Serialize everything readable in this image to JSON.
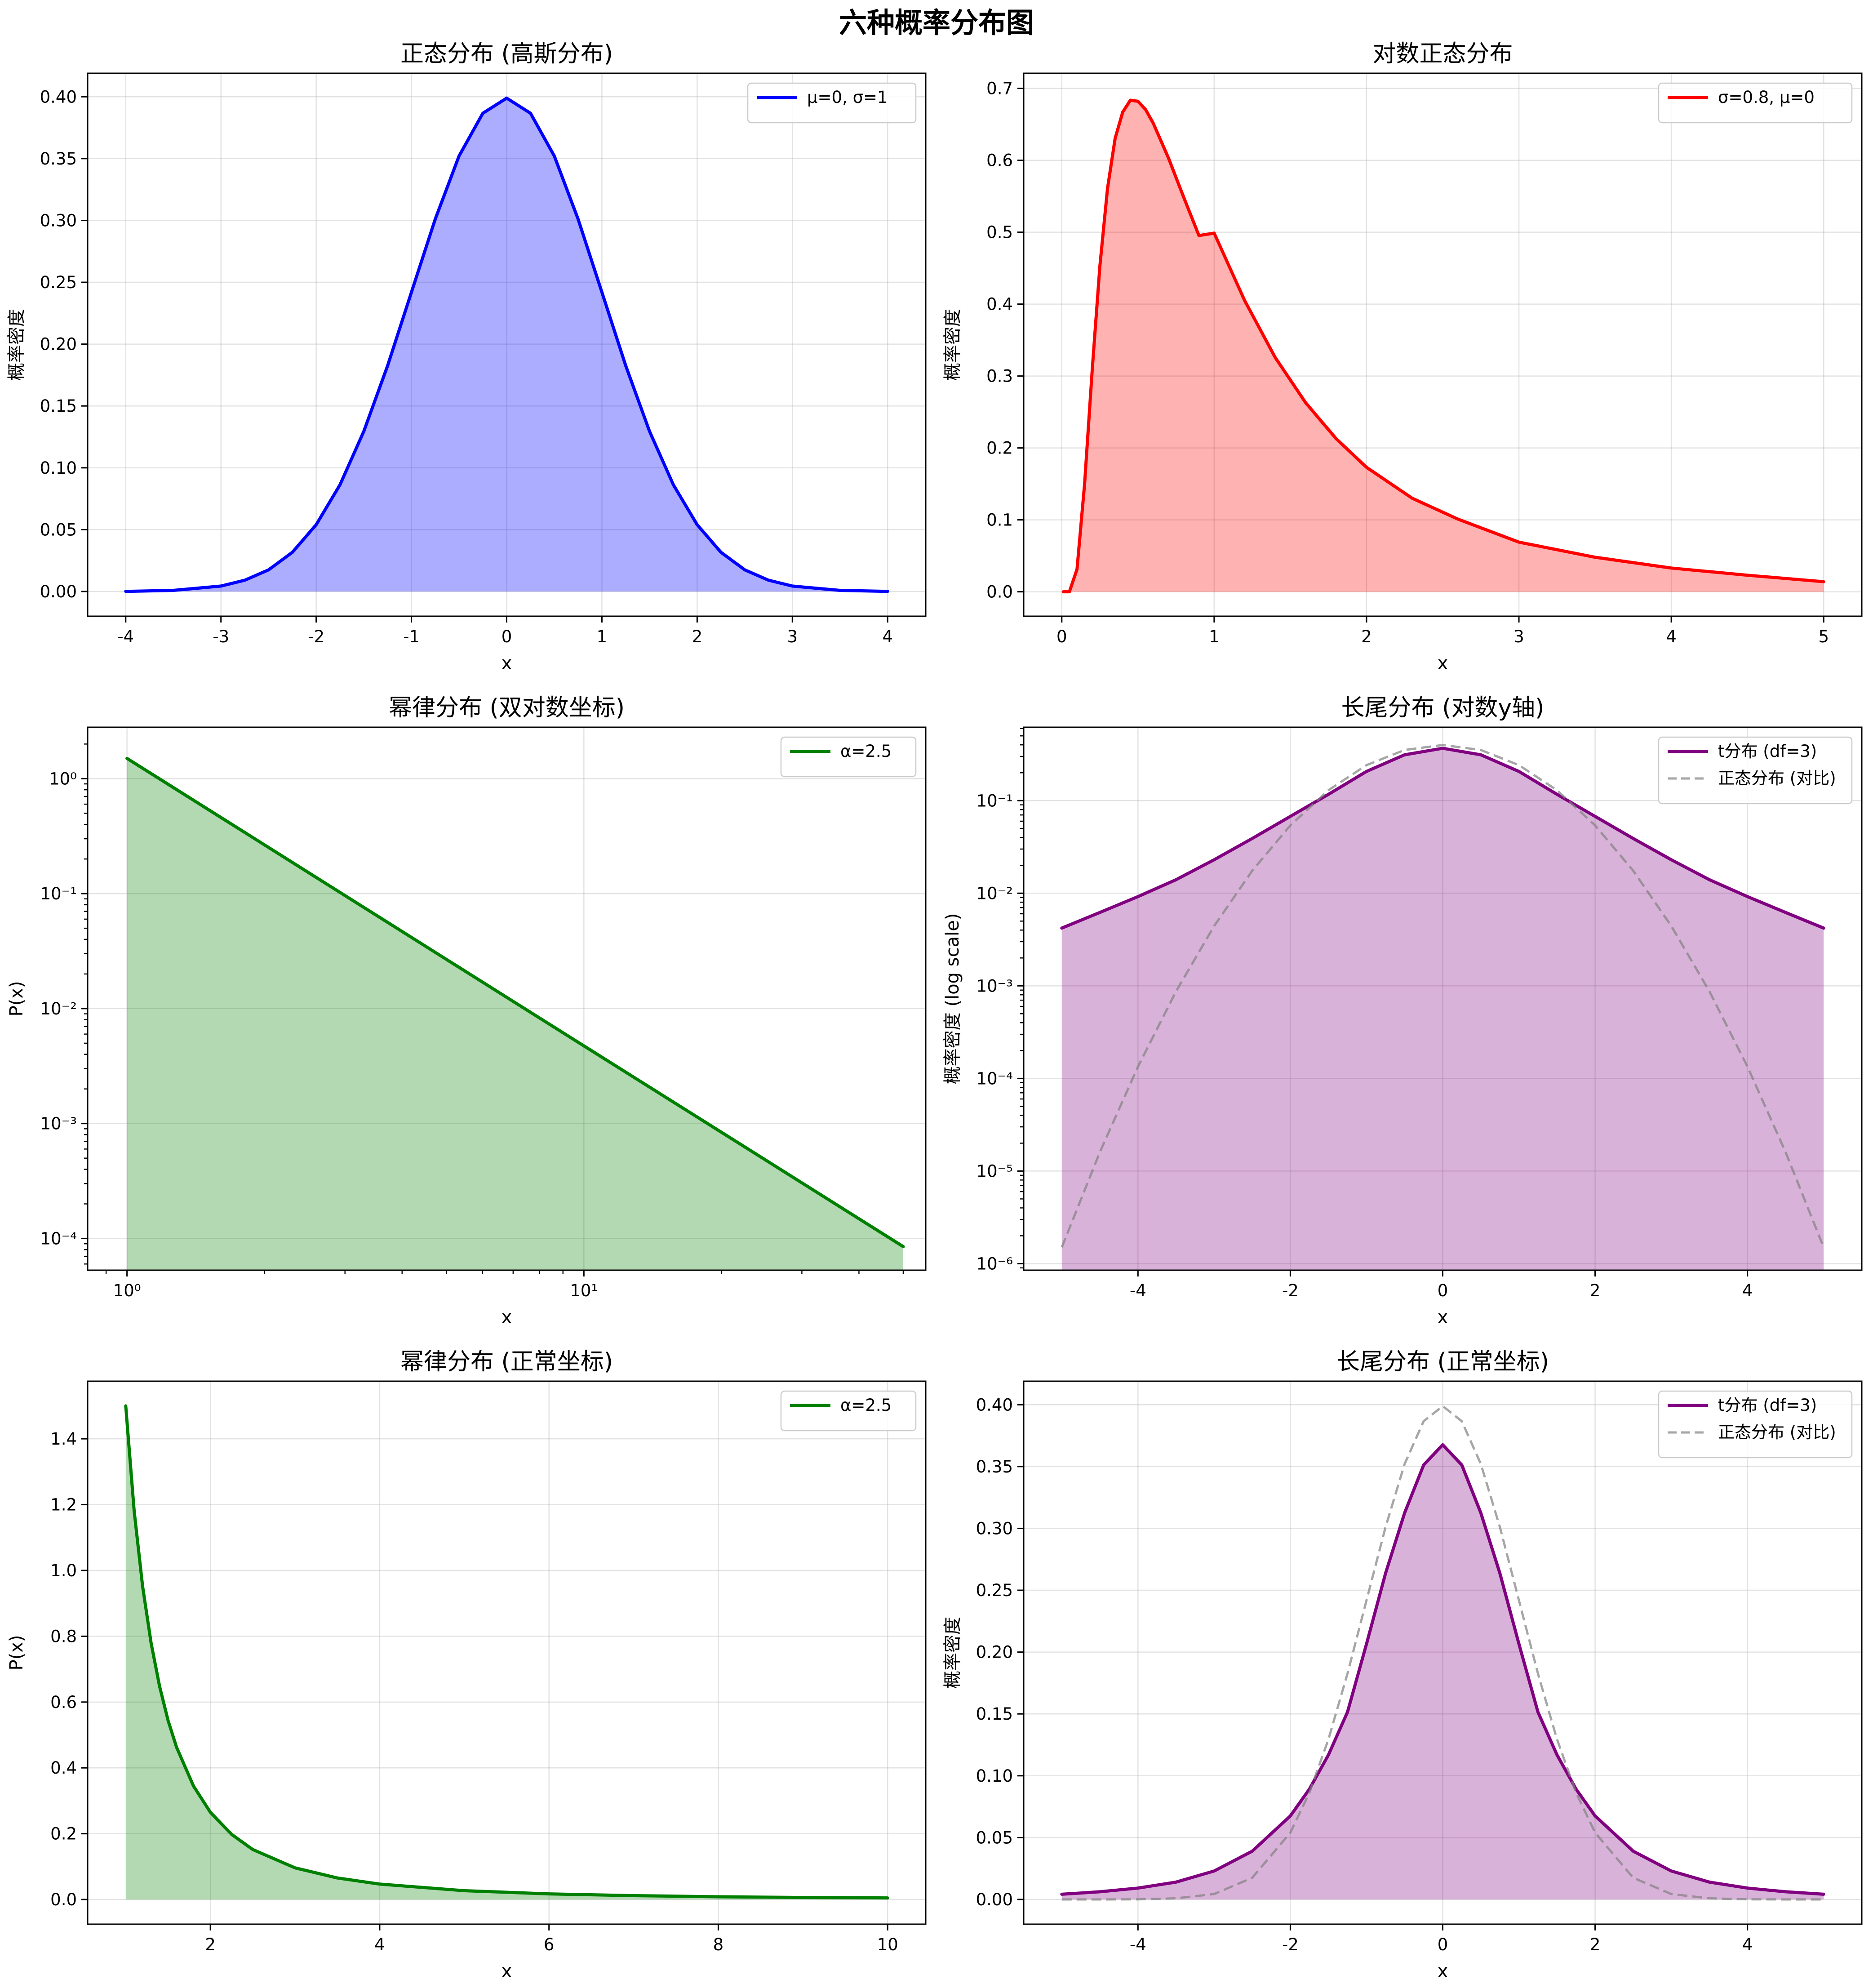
{
  "figure": {
    "suptitle": "六种概率分布图"
  },
  "chart_data": [
    {
      "id": "normal",
      "type": "area",
      "title": "正态分布 (高斯分布)",
      "xlabel": "x",
      "ylabel": "概率密度",
      "xscale": "linear",
      "yscale": "linear",
      "xlim": [
        -4.4,
        4.4
      ],
      "ylim": [
        -0.02,
        0.419
      ],
      "grid": true,
      "legend_loc": "upper right",
      "xticks": [
        -4,
        -3,
        -2,
        -1,
        0,
        1,
        2,
        3,
        4
      ],
      "xtick_labels": [
        "-4",
        "-3",
        "-2",
        "-1",
        "0",
        "1",
        "2",
        "3",
        "4"
      ],
      "yticks": [
        0.0,
        0.05,
        0.1,
        0.15,
        0.2,
        0.25,
        0.3,
        0.35,
        0.4
      ],
      "ytick_labels": [
        "0.00",
        "0.05",
        "0.10",
        "0.15",
        "0.20",
        "0.25",
        "0.30",
        "0.35",
        "0.40"
      ],
      "series": [
        {
          "name": "μ=0, σ=1",
          "color": "#0000ff",
          "fill": "#0000ff",
          "fill_opacity": 0.32,
          "style": "solid",
          "x": [
            -4,
            -3.5,
            -3,
            -2.75,
            -2.5,
            -2.25,
            -2,
            -1.75,
            -1.5,
            -1.25,
            -1,
            -0.75,
            -0.5,
            -0.25,
            0,
            0.25,
            0.5,
            0.75,
            1,
            1.25,
            1.5,
            1.75,
            2,
            2.25,
            2.5,
            2.75,
            3,
            3.5,
            4
          ],
          "y": [
            0.0001,
            0.0009,
            0.0044,
            0.0091,
            0.0175,
            0.0317,
            0.054,
            0.0863,
            0.1295,
            0.1826,
            0.242,
            0.3011,
            0.3521,
            0.3867,
            0.3989,
            0.3867,
            0.3521,
            0.3011,
            0.242,
            0.1826,
            0.1295,
            0.0863,
            0.054,
            0.0317,
            0.0175,
            0.0091,
            0.0044,
            0.0009,
            0.0001
          ]
        }
      ]
    },
    {
      "id": "lognormal",
      "type": "area",
      "title": "对数正态分布",
      "xlabel": "x",
      "ylabel": "概率密度",
      "xscale": "linear",
      "yscale": "linear",
      "xlim": [
        -0.25,
        5.25
      ],
      "ylim": [
        -0.034,
        0.721
      ],
      "grid": true,
      "legend_loc": "upper right",
      "xticks": [
        0,
        1,
        2,
        3,
        4,
        5
      ],
      "xtick_labels": [
        "0",
        "1",
        "2",
        "3",
        "4",
        "5"
      ],
      "yticks": [
        0.0,
        0.1,
        0.2,
        0.3,
        0.4,
        0.5,
        0.6,
        0.7
      ],
      "ytick_labels": [
        "0.0",
        "0.1",
        "0.2",
        "0.3",
        "0.4",
        "0.5",
        "0.6",
        "0.7"
      ],
      "series": [
        {
          "name": "σ=0.8, μ=0",
          "color": "#ff0000",
          "fill": "#ff0000",
          "fill_opacity": 0.3,
          "style": "solid",
          "x": [
            0.01,
            0.05,
            0.1,
            0.15,
            0.2,
            0.25,
            0.3,
            0.35,
            0.4,
            0.45,
            0.5,
            0.55,
            0.6,
            0.7,
            0.8,
            0.9,
            1.0,
            1.2,
            1.4,
            1.6,
            1.8,
            2.0,
            2.3,
            2.6,
            3.0,
            3.5,
            4.0,
            4.5,
            5.0
          ],
          "y": [
            0.0,
            0.0,
            0.0313,
            0.1504,
            0.3093,
            0.4524,
            0.5605,
            0.6305,
            0.667,
            0.6835,
            0.682,
            0.6705,
            0.6517,
            0.6033,
            0.5487,
            0.4953,
            0.4987,
            0.405,
            0.326,
            0.263,
            0.213,
            0.173,
            0.13,
            0.101,
            0.069,
            0.048,
            0.033,
            0.023,
            0.014
          ]
        }
      ]
    },
    {
      "id": "powerlaw-loglog",
      "type": "area",
      "title": "幂律分布 (双对数坐标)",
      "xlabel": "x",
      "ylabel": "P(x)",
      "xscale": "log",
      "yscale": "log",
      "xlim": [
        0.82,
        56
      ],
      "ylim": [
        5.3e-05,
        2.8
      ],
      "grid": true,
      "legend_loc": "upper right",
      "xticks": [
        1,
        10
      ],
      "xtick_labels": [
        "10⁰",
        "10¹"
      ],
      "yticks": [
        0.0001,
        0.001,
        0.01,
        0.1,
        1
      ],
      "ytick_labels": [
        "10⁻⁴",
        "10⁻³",
        "10⁻²",
        "10⁻¹",
        "10⁰"
      ],
      "series": [
        {
          "name": "α=2.5",
          "color": "#008000",
          "fill": "#008000",
          "fill_opacity": 0.3,
          "style": "solid",
          "x": [
            1,
            2,
            5,
            10,
            20,
            50
          ],
          "y": [
            1.5,
            0.2652,
            0.0268,
            0.00474,
            0.00084,
            8.5e-05
          ]
        }
      ]
    },
    {
      "id": "longtail-logy",
      "type": "area",
      "title": "长尾分布 (对数y轴)",
      "xlabel": "x",
      "ylabel": "概率密度 (log scale)",
      "xscale": "linear",
      "yscale": "log",
      "xlim": [
        -5.5,
        5.5
      ],
      "ylim": [
        8.5e-07,
        0.62
      ],
      "grid": true,
      "legend_loc": "upper right",
      "xticks": [
        -4,
        -2,
        0,
        2,
        4
      ],
      "xtick_labels": [
        "-4",
        "-2",
        "0",
        "2",
        "4"
      ],
      "yticks": [
        1e-06,
        1e-05,
        0.0001,
        0.001,
        0.01,
        0.1
      ],
      "ytick_labels": [
        "10⁻⁶",
        "10⁻⁵",
        "10⁻⁴",
        "10⁻³",
        "10⁻²",
        "10⁻¹"
      ],
      "series": [
        {
          "name": "t分布 (df=3)",
          "color": "#800080",
          "fill": "#800080",
          "fill_opacity": 0.3,
          "style": "solid",
          "x": [
            -5,
            -4.5,
            -4,
            -3.5,
            -3,
            -2.5,
            -2,
            -1.5,
            -1,
            -0.5,
            0,
            0.5,
            1,
            1.5,
            2,
            2.5,
            3,
            3.5,
            4,
            4.5,
            5
          ],
          "y": [
            0.0042,
            0.0062,
            0.0092,
            0.014,
            0.023,
            0.039,
            0.0675,
            0.1169,
            0.2067,
            0.3125,
            0.3676,
            0.3125,
            0.2067,
            0.1169,
            0.0675,
            0.039,
            0.023,
            0.014,
            0.0092,
            0.0062,
            0.0042
          ]
        },
        {
          "name": "正态分布 (对比)",
          "color": "#808080",
          "fill": null,
          "fill_opacity": 0,
          "style": "dashed",
          "opacity": 0.7,
          "x": [
            -5,
            -4.5,
            -4,
            -3.5,
            -3,
            -2.5,
            -2,
            -1.5,
            -1,
            -0.5,
            0,
            0.5,
            1,
            1.5,
            2,
            2.5,
            3,
            3.5,
            4,
            4.5,
            5
          ],
          "y": [
            1.5e-06,
            1.6e-05,
            0.000134,
            0.000873,
            0.00443,
            0.0175,
            0.054,
            0.1295,
            0.242,
            0.3521,
            0.3989,
            0.3521,
            0.242,
            0.1295,
            0.054,
            0.0175,
            0.00443,
            0.000873,
            0.000134,
            1.6e-05,
            1.5e-06
          ]
        }
      ]
    },
    {
      "id": "powerlaw-linear",
      "type": "area",
      "title": "幂律分布 (正常坐标)",
      "xlabel": "x",
      "ylabel": "P(x)",
      "xscale": "linear",
      "yscale": "linear",
      "xlim": [
        0.55,
        10.45
      ],
      "ylim": [
        -0.075,
        1.575
      ],
      "grid": true,
      "legend_loc": "upper right",
      "xticks": [
        2,
        4,
        6,
        8,
        10
      ],
      "xtick_labels": [
        "2",
        "4",
        "6",
        "8",
        "10"
      ],
      "yticks": [
        0.0,
        0.2,
        0.4,
        0.6,
        0.8,
        1.0,
        1.2,
        1.4
      ],
      "ytick_labels": [
        "0.0",
        "0.2",
        "0.4",
        "0.6",
        "0.8",
        "1.0",
        "1.2",
        "1.4"
      ],
      "series": [
        {
          "name": "α=2.5",
          "color": "#008000",
          "fill": "#008000",
          "fill_opacity": 0.3,
          "style": "solid",
          "x": [
            1.0,
            1.1,
            1.2,
            1.3,
            1.4,
            1.5,
            1.6,
            1.8,
            2.0,
            2.25,
            2.5,
            3.0,
            3.5,
            4.0,
            5.0,
            6.0,
            7.0,
            8.0,
            9.0,
            10.0
          ],
          "y": [
            1.5,
            1.18,
            0.951,
            0.779,
            0.648,
            0.544,
            0.463,
            0.345,
            0.265,
            0.198,
            0.152,
            0.0962,
            0.0654,
            0.0469,
            0.0268,
            0.017,
            0.0117,
            0.0083,
            0.0062,
            0.0047
          ]
        }
      ]
    },
    {
      "id": "longtail-linear",
      "type": "area",
      "title": "长尾分布 (正常坐标)",
      "xlabel": "x",
      "ylabel": "概率密度",
      "xscale": "linear",
      "yscale": "linear",
      "xlim": [
        -5.5,
        5.5
      ],
      "ylim": [
        -0.02,
        0.419
      ],
      "grid": true,
      "legend_loc": "upper right",
      "xticks": [
        -4,
        -2,
        0,
        2,
        4
      ],
      "xtick_labels": [
        "-4",
        "-2",
        "0",
        "2",
        "4"
      ],
      "yticks": [
        0.0,
        0.05,
        0.1,
        0.15,
        0.2,
        0.25,
        0.3,
        0.35,
        0.4
      ],
      "ytick_labels": [
        "0.00",
        "0.05",
        "0.10",
        "0.15",
        "0.20",
        "0.25",
        "0.30",
        "0.35",
        "0.40"
      ],
      "series": [
        {
          "name": "t分布 (df=3)",
          "color": "#800080",
          "fill": "#800080",
          "fill_opacity": 0.3,
          "style": "solid",
          "x": [
            -5,
            -4.5,
            -4,
            -3.5,
            -3,
            -2.5,
            -2,
            -1.75,
            -1.5,
            -1.25,
            -1,
            -0.75,
            -0.5,
            -0.25,
            0,
            0.25,
            0.5,
            0.75,
            1,
            1.25,
            1.5,
            1.75,
            2,
            2.5,
            3,
            3.5,
            4,
            4.5,
            5
          ],
          "y": [
            0.0042,
            0.0062,
            0.0092,
            0.014,
            0.023,
            0.039,
            0.0675,
            0.0892,
            0.1169,
            0.1515,
            0.2067,
            0.2637,
            0.3125,
            0.3513,
            0.3676,
            0.3513,
            0.3125,
            0.2637,
            0.2067,
            0.1515,
            0.1169,
            0.0892,
            0.0675,
            0.039,
            0.023,
            0.014,
            0.0092,
            0.0062,
            0.0042
          ]
        },
        {
          "name": "正态分布 (对比)",
          "color": "#808080",
          "fill": null,
          "fill_opacity": 0,
          "style": "dashed",
          "opacity": 0.7,
          "x": [
            -5,
            -4.5,
            -4,
            -3.5,
            -3,
            -2.5,
            -2,
            -1.75,
            -1.5,
            -1.25,
            -1,
            -0.75,
            -0.5,
            -0.25,
            0,
            0.25,
            0.5,
            0.75,
            1,
            1.25,
            1.5,
            1.75,
            2,
            2.5,
            3,
            3.5,
            4,
            4.5,
            5
          ],
          "y": [
            0.0,
            0.0,
            0.0001,
            0.0009,
            0.0044,
            0.0175,
            0.054,
            0.0863,
            0.1295,
            0.1826,
            0.242,
            0.3011,
            0.3521,
            0.3867,
            0.3989,
            0.3867,
            0.3521,
            0.3011,
            0.242,
            0.1826,
            0.1295,
            0.0863,
            0.054,
            0.0175,
            0.0044,
            0.0009,
            0.0001,
            0.0,
            0.0
          ]
        }
      ]
    }
  ]
}
